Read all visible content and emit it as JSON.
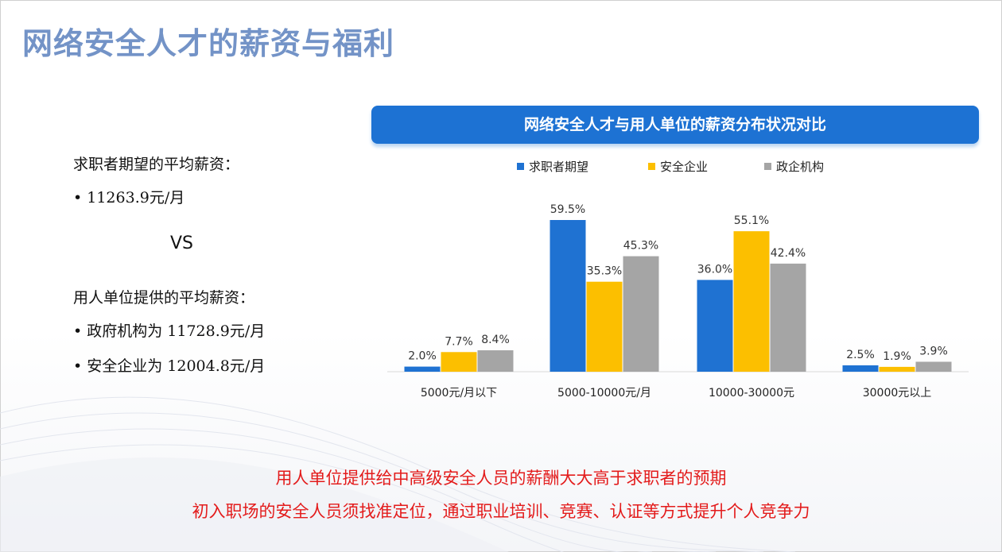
{
  "title": "网络安全人才的薪资与福利",
  "left_text": {
    "expect_label": "求职者期望的平均薪资：",
    "expect_value": "• 11263.9元/月",
    "vs": "VS",
    "offer_label": "用人单位提供的平均薪资：",
    "gov_value": "• 政府机构为 11728.9元/月",
    "corp_value": "• 安全企业为 12004.8元/月"
  },
  "chart_data": {
    "type": "bar",
    "title": "网络安全人才与用人单位的薪资分布状况对比",
    "categories": [
      "5000元/月以下",
      "5000-10000元/月",
      "10000-30000元",
      "30000元以上"
    ],
    "series": [
      {
        "name": "求职者期望",
        "color": "#1f72d2",
        "values": [
          2.0,
          59.5,
          36.0,
          2.5
        ]
      },
      {
        "name": "安全企业",
        "color": "#fcbf00",
        "values": [
          7.7,
          35.3,
          55.1,
          1.9
        ]
      },
      {
        "name": "政企机构",
        "color": "#a5a5a5",
        "values": [
          8.4,
          45.3,
          42.4,
          3.9
        ]
      }
    ],
    "unit": "%",
    "legend": "top",
    "ylim": [
      0,
      60
    ],
    "grid": false
  },
  "notes": [
    "用人单位提供给中高级安全人员的薪酬大大高于求职者的预期",
    "初入职场的安全人员须找准定位，通过职业培训、竞赛、认证等方式提升个人竞争力"
  ]
}
